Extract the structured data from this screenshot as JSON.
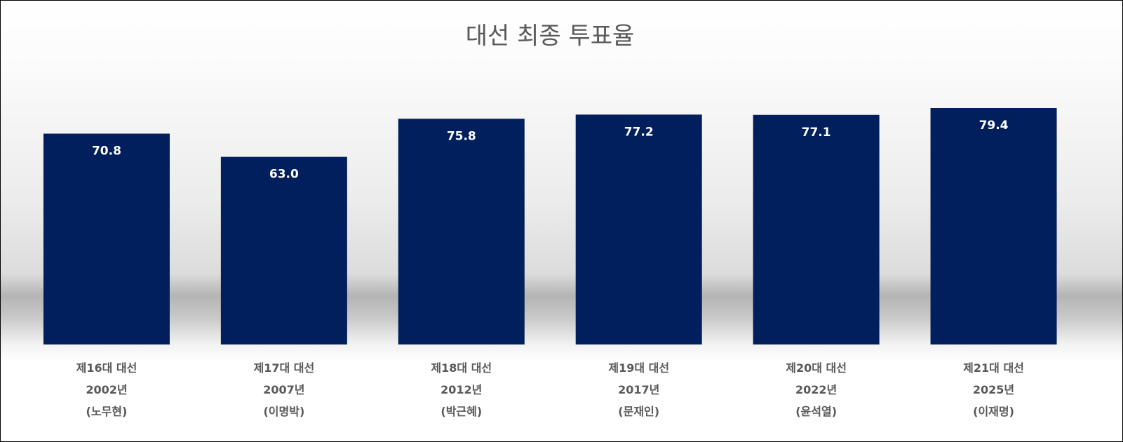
{
  "chart_data": {
    "type": "bar",
    "title": "대선 최종 투표율",
    "categories": [
      "제16대 대선\n2002년\n(노무현)",
      "제17대 대선\n2007년\n(이명박)",
      "제18대 대선\n2012년\n(박근혜)",
      "제19대 대선\n2017년\n(문재인)",
      "제20대 대선\n2022년\n(윤석열)",
      "제21대 대선\n2025년\n(이재명)"
    ],
    "values": [
      70.8,
      63.0,
      75.8,
      77.2,
      77.1,
      79.4
    ],
    "value_labels": [
      "70.8",
      "63.0",
      "75.8",
      "77.2",
      "77.1",
      "79.4"
    ],
    "color": "#001f5c",
    "ylim": [
      0,
      90
    ]
  }
}
